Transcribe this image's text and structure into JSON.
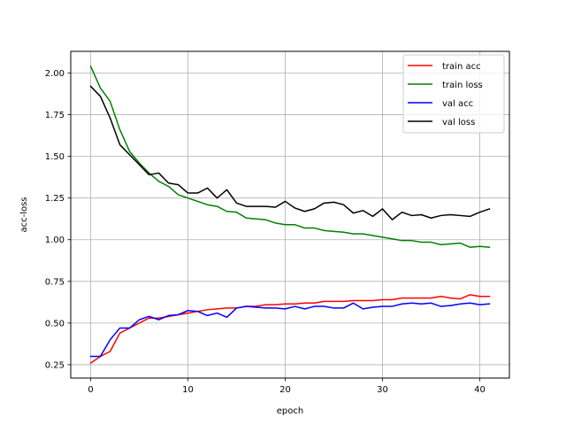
{
  "chart_data": {
    "type": "line",
    "title": "",
    "xlabel": "epoch",
    "ylabel": "acc-loss",
    "xlim": [
      -2.05,
      43.05
    ],
    "ylim": [
      0.17,
      2.13
    ],
    "xticks": [
      0,
      10,
      20,
      30,
      40
    ],
    "yticks": [
      0.25,
      0.5,
      0.75,
      1.0,
      1.25,
      1.5,
      1.75,
      2.0
    ],
    "xtick_labels": [
      "0",
      "10",
      "20",
      "30",
      "40"
    ],
    "ytick_labels": [
      "0.25",
      "0.50",
      "0.75",
      "1.00",
      "1.25",
      "1.50",
      "1.75",
      "2.00"
    ],
    "grid": true,
    "legend_position": "top-right",
    "x": [
      0,
      1,
      2,
      3,
      4,
      5,
      6,
      7,
      8,
      9,
      10,
      11,
      12,
      13,
      14,
      15,
      16,
      17,
      18,
      19,
      20,
      21,
      22,
      23,
      24,
      25,
      26,
      27,
      28,
      29,
      30,
      31,
      32,
      33,
      34,
      35,
      36,
      37,
      38,
      39,
      40,
      41
    ],
    "series": [
      {
        "name": "train acc",
        "color": "#ff0000",
        "values": [
          0.26,
          0.3,
          0.33,
          0.44,
          0.47,
          0.5,
          0.53,
          0.53,
          0.54,
          0.55,
          0.56,
          0.57,
          0.58,
          0.585,
          0.59,
          0.59,
          0.6,
          0.6,
          0.61,
          0.61,
          0.615,
          0.615,
          0.62,
          0.62,
          0.63,
          0.63,
          0.63,
          0.635,
          0.635,
          0.635,
          0.64,
          0.64,
          0.65,
          0.65,
          0.65,
          0.65,
          0.66,
          0.65,
          0.645,
          0.67,
          0.66,
          0.66
        ]
      },
      {
        "name": "train loss",
        "color": "#008000",
        "values": [
          2.04,
          1.91,
          1.83,
          1.66,
          1.53,
          1.46,
          1.4,
          1.35,
          1.32,
          1.27,
          1.25,
          1.23,
          1.21,
          1.2,
          1.17,
          1.165,
          1.13,
          1.125,
          1.12,
          1.1,
          1.09,
          1.09,
          1.07,
          1.07,
          1.055,
          1.05,
          1.045,
          1.035,
          1.035,
          1.025,
          1.015,
          1.005,
          0.995,
          0.995,
          0.985,
          0.985,
          0.97,
          0.975,
          0.98,
          0.955,
          0.96,
          0.955
        ]
      },
      {
        "name": "val acc",
        "color": "#0000ff",
        "values": [
          0.3,
          0.3,
          0.4,
          0.47,
          0.47,
          0.52,
          0.54,
          0.52,
          0.545,
          0.55,
          0.575,
          0.57,
          0.545,
          0.56,
          0.535,
          0.59,
          0.6,
          0.595,
          0.59,
          0.59,
          0.585,
          0.6,
          0.585,
          0.6,
          0.6,
          0.59,
          0.59,
          0.62,
          0.585,
          0.595,
          0.6,
          0.6,
          0.615,
          0.62,
          0.615,
          0.62,
          0.6,
          0.605,
          0.615,
          0.62,
          0.61,
          0.615
        ]
      },
      {
        "name": "val loss",
        "color": "#000000",
        "values": [
          1.92,
          1.86,
          1.73,
          1.57,
          1.51,
          1.45,
          1.39,
          1.4,
          1.34,
          1.33,
          1.28,
          1.28,
          1.31,
          1.25,
          1.3,
          1.22,
          1.2,
          1.2,
          1.2,
          1.195,
          1.23,
          1.19,
          1.17,
          1.185,
          1.22,
          1.225,
          1.21,
          1.16,
          1.175,
          1.14,
          1.185,
          1.12,
          1.165,
          1.145,
          1.15,
          1.13,
          1.145,
          1.15,
          1.145,
          1.14,
          1.165,
          1.185
        ]
      }
    ]
  }
}
